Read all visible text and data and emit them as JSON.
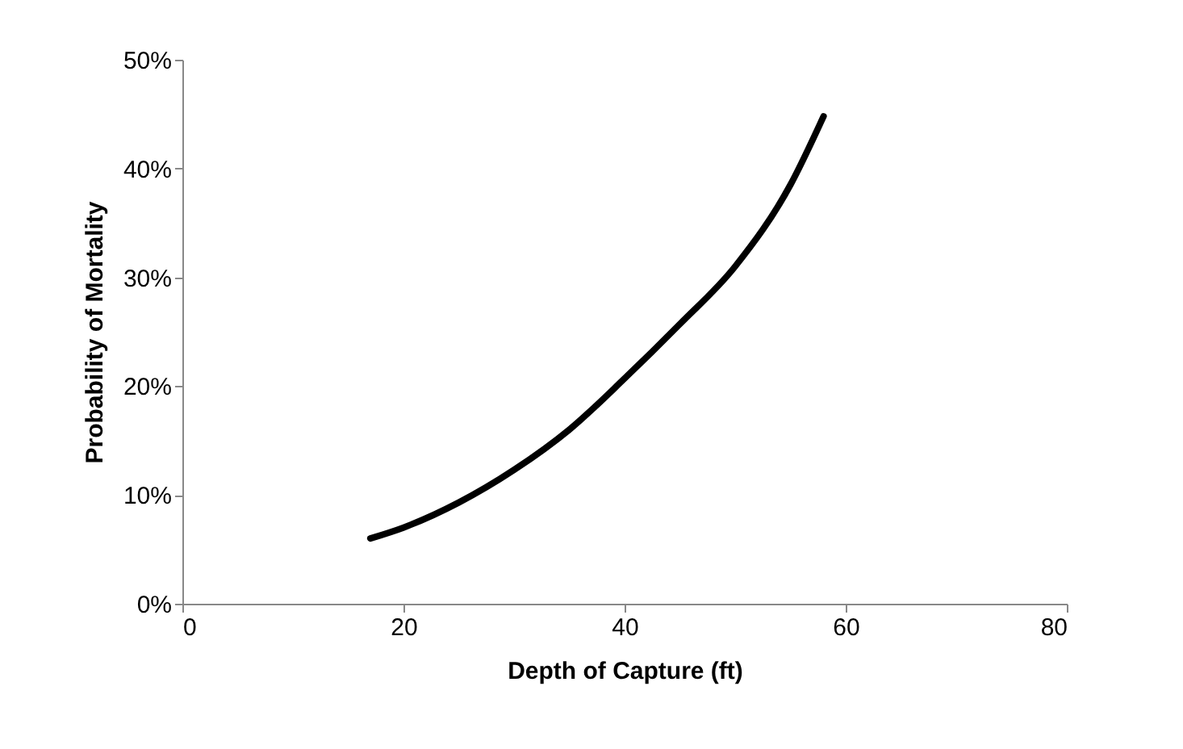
{
  "chart_data": {
    "type": "line",
    "xlabel": "Depth of Capture (ft)",
    "ylabel": "Probability of Mortality",
    "x": [
      17,
      20,
      25,
      30,
      35,
      40,
      45,
      50,
      55,
      58
    ],
    "series": [
      {
        "color": "#000000",
        "values": [
          6,
          7,
          9.3,
          12.3,
          16,
          20.7,
          25.7,
          31,
          38.5,
          44.8
        ]
      }
    ],
    "xlim": [
      0,
      80
    ],
    "xticks": [
      0,
      20,
      40,
      60,
      80
    ],
    "ylim": [
      0,
      50
    ],
    "yticks": [
      {
        "value": 0,
        "label": "0%"
      },
      {
        "value": 10,
        "label": "10%"
      },
      {
        "value": 20,
        "label": "20%"
      },
      {
        "value": 30,
        "label": "30%"
      },
      {
        "value": 40,
        "label": "40%"
      },
      {
        "value": 50,
        "label": "50%"
      }
    ],
    "grid": false,
    "marker": "none",
    "line_style": "solid"
  }
}
